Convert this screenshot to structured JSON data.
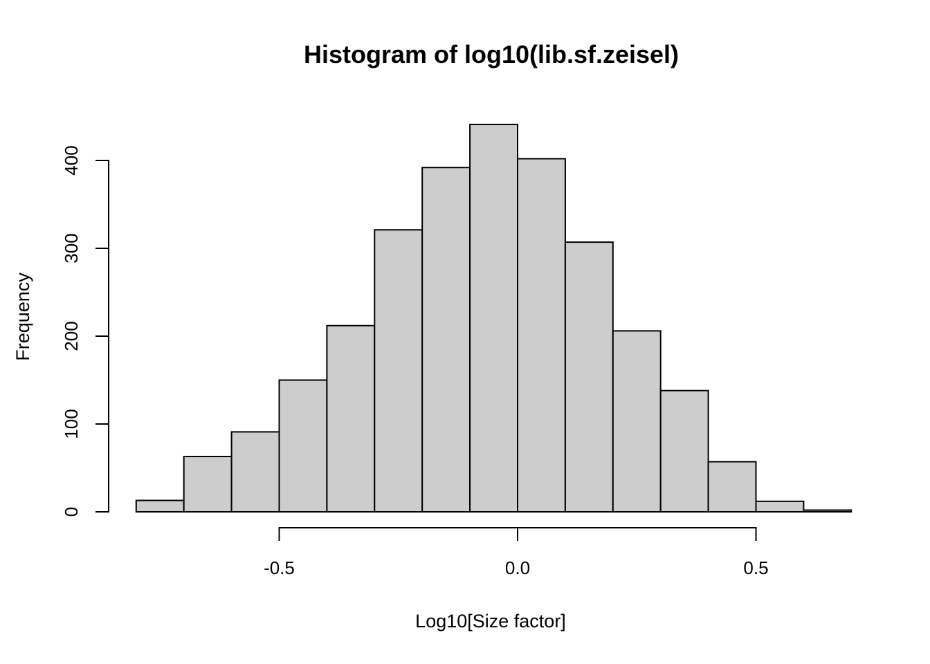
{
  "figure": {
    "background": "#ffffff"
  },
  "chart_data": {
    "type": "bar",
    "subtype": "histogram",
    "title": "Histogram of log10(lib.sf.zeisel)",
    "xlabel": "Log10[Size factor]",
    "ylabel": "Frequency",
    "bin_start": -0.8,
    "bin_width": 0.1,
    "bin_edges": [
      -0.8,
      -0.7,
      -0.6,
      -0.5,
      -0.4,
      -0.3,
      -0.2,
      -0.1,
      0.0,
      0.1,
      0.2,
      0.3,
      0.4,
      0.5,
      0.6,
      0.7
    ],
    "frequencies": [
      13,
      63,
      91,
      150,
      212,
      321,
      392,
      441,
      402,
      307,
      206,
      138,
      57,
      12,
      2
    ],
    "xlim": [
      -0.8,
      0.7
    ],
    "ylim": [
      0,
      400
    ],
    "xticks": [
      -0.5,
      0.0,
      0.5
    ],
    "xtick_labels": [
      "-0.5",
      "0.0",
      "0.5"
    ],
    "yticks": [
      0,
      100,
      200,
      300,
      400
    ],
    "ytick_labels": [
      "0",
      "100",
      "200",
      "300",
      "400"
    ],
    "grid": false,
    "legend": null,
    "colors": {
      "bar_fill": "#cdcdcd",
      "bar_stroke": "#000000",
      "axis_stroke": "#000000",
      "background": "#ffffff"
    }
  }
}
